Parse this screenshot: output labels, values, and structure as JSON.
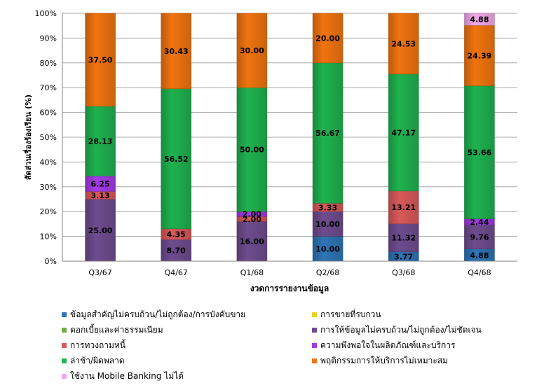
{
  "chart_data": {
    "type": "bar",
    "stacked": "percent",
    "categories": [
      "Q3/67",
      "Q4/67",
      "Q1/68",
      "Q2/68",
      "Q3/68",
      "Q4/68"
    ],
    "ylabel": "สัดส่วนเรื่องร้องเรียน (%)",
    "xlabel": "งวดการรายงานข้อมูล",
    "ylim": [
      0,
      100
    ],
    "yticks": [
      "0%",
      "10%",
      "20%",
      "30%",
      "40%",
      "50%",
      "60%",
      "70%",
      "80%",
      "90%",
      "100%"
    ],
    "grid": true,
    "legend_position": "bottom",
    "series": [
      {
        "name": "ข้อมูลสำคัญไม่ครบถ้วน/ไม่ถูกต้อง/การบังคับขาย",
        "color": "#2E75B6",
        "values": [
          0,
          0,
          0,
          10.0,
          3.77,
          4.88
        ],
        "labels": [
          "",
          "",
          "",
          "10.00",
          "3.77",
          "4.88"
        ]
      },
      {
        "name": "การขายที่รบกวน",
        "color": "#E8D21F",
        "values": [
          0,
          0,
          0,
          0,
          0,
          0
        ],
        "labels": [
          "",
          "",
          "",
          "",
          "",
          ""
        ]
      },
      {
        "name": "ดอกเบี้ยและค่าธรรมเนียม",
        "color": "#70AD47",
        "values": [
          0,
          0,
          0,
          0,
          0,
          0
        ],
        "labels": [
          "",
          "",
          "",
          "",
          "",
          ""
        ]
      },
      {
        "name": "การให้ข้อมูลไม่ครบถ้วน/ไม่ถูกต้อง/ไม่ชัดเจน",
        "color": "#6E4C8E",
        "values": [
          25.0,
          8.7,
          16.0,
          10.0,
          11.32,
          9.76
        ],
        "labels": [
          "25.00",
          "8.70",
          "16.00",
          "10.00",
          "11.32",
          "9.76"
        ]
      },
      {
        "name": "การทวงถามหนี้",
        "color": "#D9595A",
        "values": [
          3.13,
          4.35,
          2.0,
          3.33,
          13.21,
          0
        ],
        "labels": [
          "3.13",
          "4.35",
          "2.00",
          "3.33",
          "13.21",
          ""
        ]
      },
      {
        "name": "ความพึงพอใจในผลิตภัณฑ์และบริการ",
        "color": "#A33BE6",
        "values": [
          6.25,
          0,
          2.0,
          0,
          0,
          2.44
        ],
        "labels": [
          "6.25",
          "",
          "2.00",
          "",
          "",
          "2.44"
        ]
      },
      {
        "name": "ล่าช้า/ผิดพลาด",
        "color": "#1FB24F",
        "values": [
          28.13,
          56.52,
          50.0,
          56.67,
          47.17,
          53.66
        ],
        "labels": [
          "28.13",
          "56.52",
          "50.00",
          "56.67",
          "47.17",
          "53.66"
        ]
      },
      {
        "name": "พฤติกรรมการให้บริการไม่เหมาะสม",
        "color": "#F0740F",
        "values": [
          37.5,
          30.43,
          30.0,
          20.0,
          24.53,
          24.39
        ],
        "labels": [
          "37.50",
          "30.43",
          "30.00",
          "20.00",
          "24.53",
          "24.39"
        ]
      },
      {
        "name": "ใช้งาน Mobile Banking ไม่ได้",
        "color": "#F2A8E8",
        "values": [
          0,
          0,
          0,
          0,
          0,
          4.88
        ],
        "labels": [
          "",
          "",
          "",
          "",
          "",
          "4.88"
        ]
      }
    ]
  }
}
